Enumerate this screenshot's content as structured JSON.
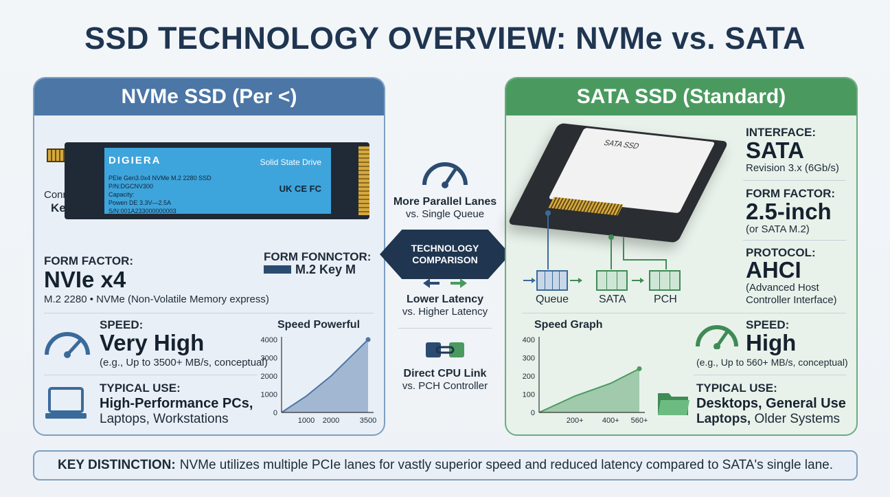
{
  "title": "SSD TECHNOLOGY OVERVIEW: NVMe vs. SATA",
  "nvme": {
    "header": "NVMe SSD (Per <)",
    "drive": {
      "brand": "DIGIERA",
      "drive_label": "Solid State Drive",
      "spec_lines": [
        "PEIe Gen3.0x4 NVMe M.2 2280 SSD",
        "P/N:DGCNV300",
        "Capacity:",
        "Powen DE 3.3V—2.5A",
        "S/N:001A233000000003"
      ],
      "certs": "UK CE FC"
    },
    "connector_label": "Connector",
    "connector_key": "Key M",
    "form_factor_label": "FORM FACTOR:",
    "form_factor_value": "NVIe x4",
    "form_factor_desc": "M.2 2280  •  NVMe (Non-Volatile Memory express)",
    "form_connector_label": "FORM FONNCTOR:",
    "form_connector_value": "M.2 Key M",
    "speed_label": "SPEED:",
    "speed_value": "Very High",
    "speed_note": "(e.g., Up to 3500+ MB/s, conceptual)",
    "use_label": "TYPICAL USE:",
    "use_line1": "High-Performance PCs,",
    "use_line2": "Laptops, Workstations",
    "icons": [
      "gauge-icon",
      "laptop-icon"
    ]
  },
  "middle": {
    "item1_title": "More Parallel Lanes",
    "item1_sub": "vs. Single Queue",
    "banner_line1": "TECHNOLOGY",
    "banner_line2": "COMPARISON",
    "item2_title": "Lower Latency",
    "item2_sub": "vs. Higher Latency",
    "item3_title": "Direct CPU Link",
    "item3_sub": "vs. PCH Controller",
    "icons": [
      "gauge-icon",
      "arrows-icon",
      "chip-link-icon"
    ]
  },
  "sata": {
    "header": "SATA SSD (Standard)",
    "drive_label": "SATA SSD",
    "interface_label": "INTERFACE:",
    "interface_value": "SATA",
    "interface_desc": "Revision 3.x (6Gb/s)",
    "form_factor_label": "FORM FACTOR:",
    "form_factor_value": "2.5-inch",
    "form_factor_desc": "(or SATA M.2)",
    "protocol_label": "PROTOCOL:",
    "protocol_value": "AHCI",
    "protocol_desc1": "(Advanced Host",
    "protocol_desc2": "Controller Interface)",
    "path_labels": [
      "Queue",
      "SATA",
      "PCH"
    ],
    "speed_label": "SPEED:",
    "speed_value": "High",
    "speed_note": "(e.g., Up to 560+ MB/s, conceptual)",
    "use_label": "TYPICAL USE:",
    "use_line1": "Desktops, General Use",
    "use_line2_bold": "Laptops,",
    "use_line2_rest": " Older Systems",
    "icons": [
      "gauge-icon",
      "folder-icon"
    ]
  },
  "footer": {
    "key_label": "KEY DISTINCTION:",
    "text": "NVMe utilizes multiple PCIe lanes for vastly superior speed and reduced latency compared to SATA's single lane."
  },
  "chart_data": [
    {
      "type": "area",
      "title": "Speed Powerful",
      "x_ticks": [
        "1000",
        "2000",
        "3500"
      ],
      "y_ticks": [
        0,
        1000,
        2000,
        3000,
        4000
      ],
      "x": [
        0,
        1000,
        2000,
        3500
      ],
      "y": [
        0,
        900,
        2000,
        4000
      ],
      "ylim": [
        0,
        4000
      ],
      "color": "#4b76a6"
    },
    {
      "type": "area",
      "title": "Speed Graph",
      "x_ticks": [
        "200+",
        "400+",
        "560+"
      ],
      "y_ticks": [
        0,
        100,
        200,
        300,
        400
      ],
      "x": [
        0,
        200,
        400,
        560
      ],
      "y": [
        0,
        90,
        160,
        240
      ],
      "ylim": [
        0,
        400
      ],
      "color": "#4a9a5f"
    }
  ]
}
